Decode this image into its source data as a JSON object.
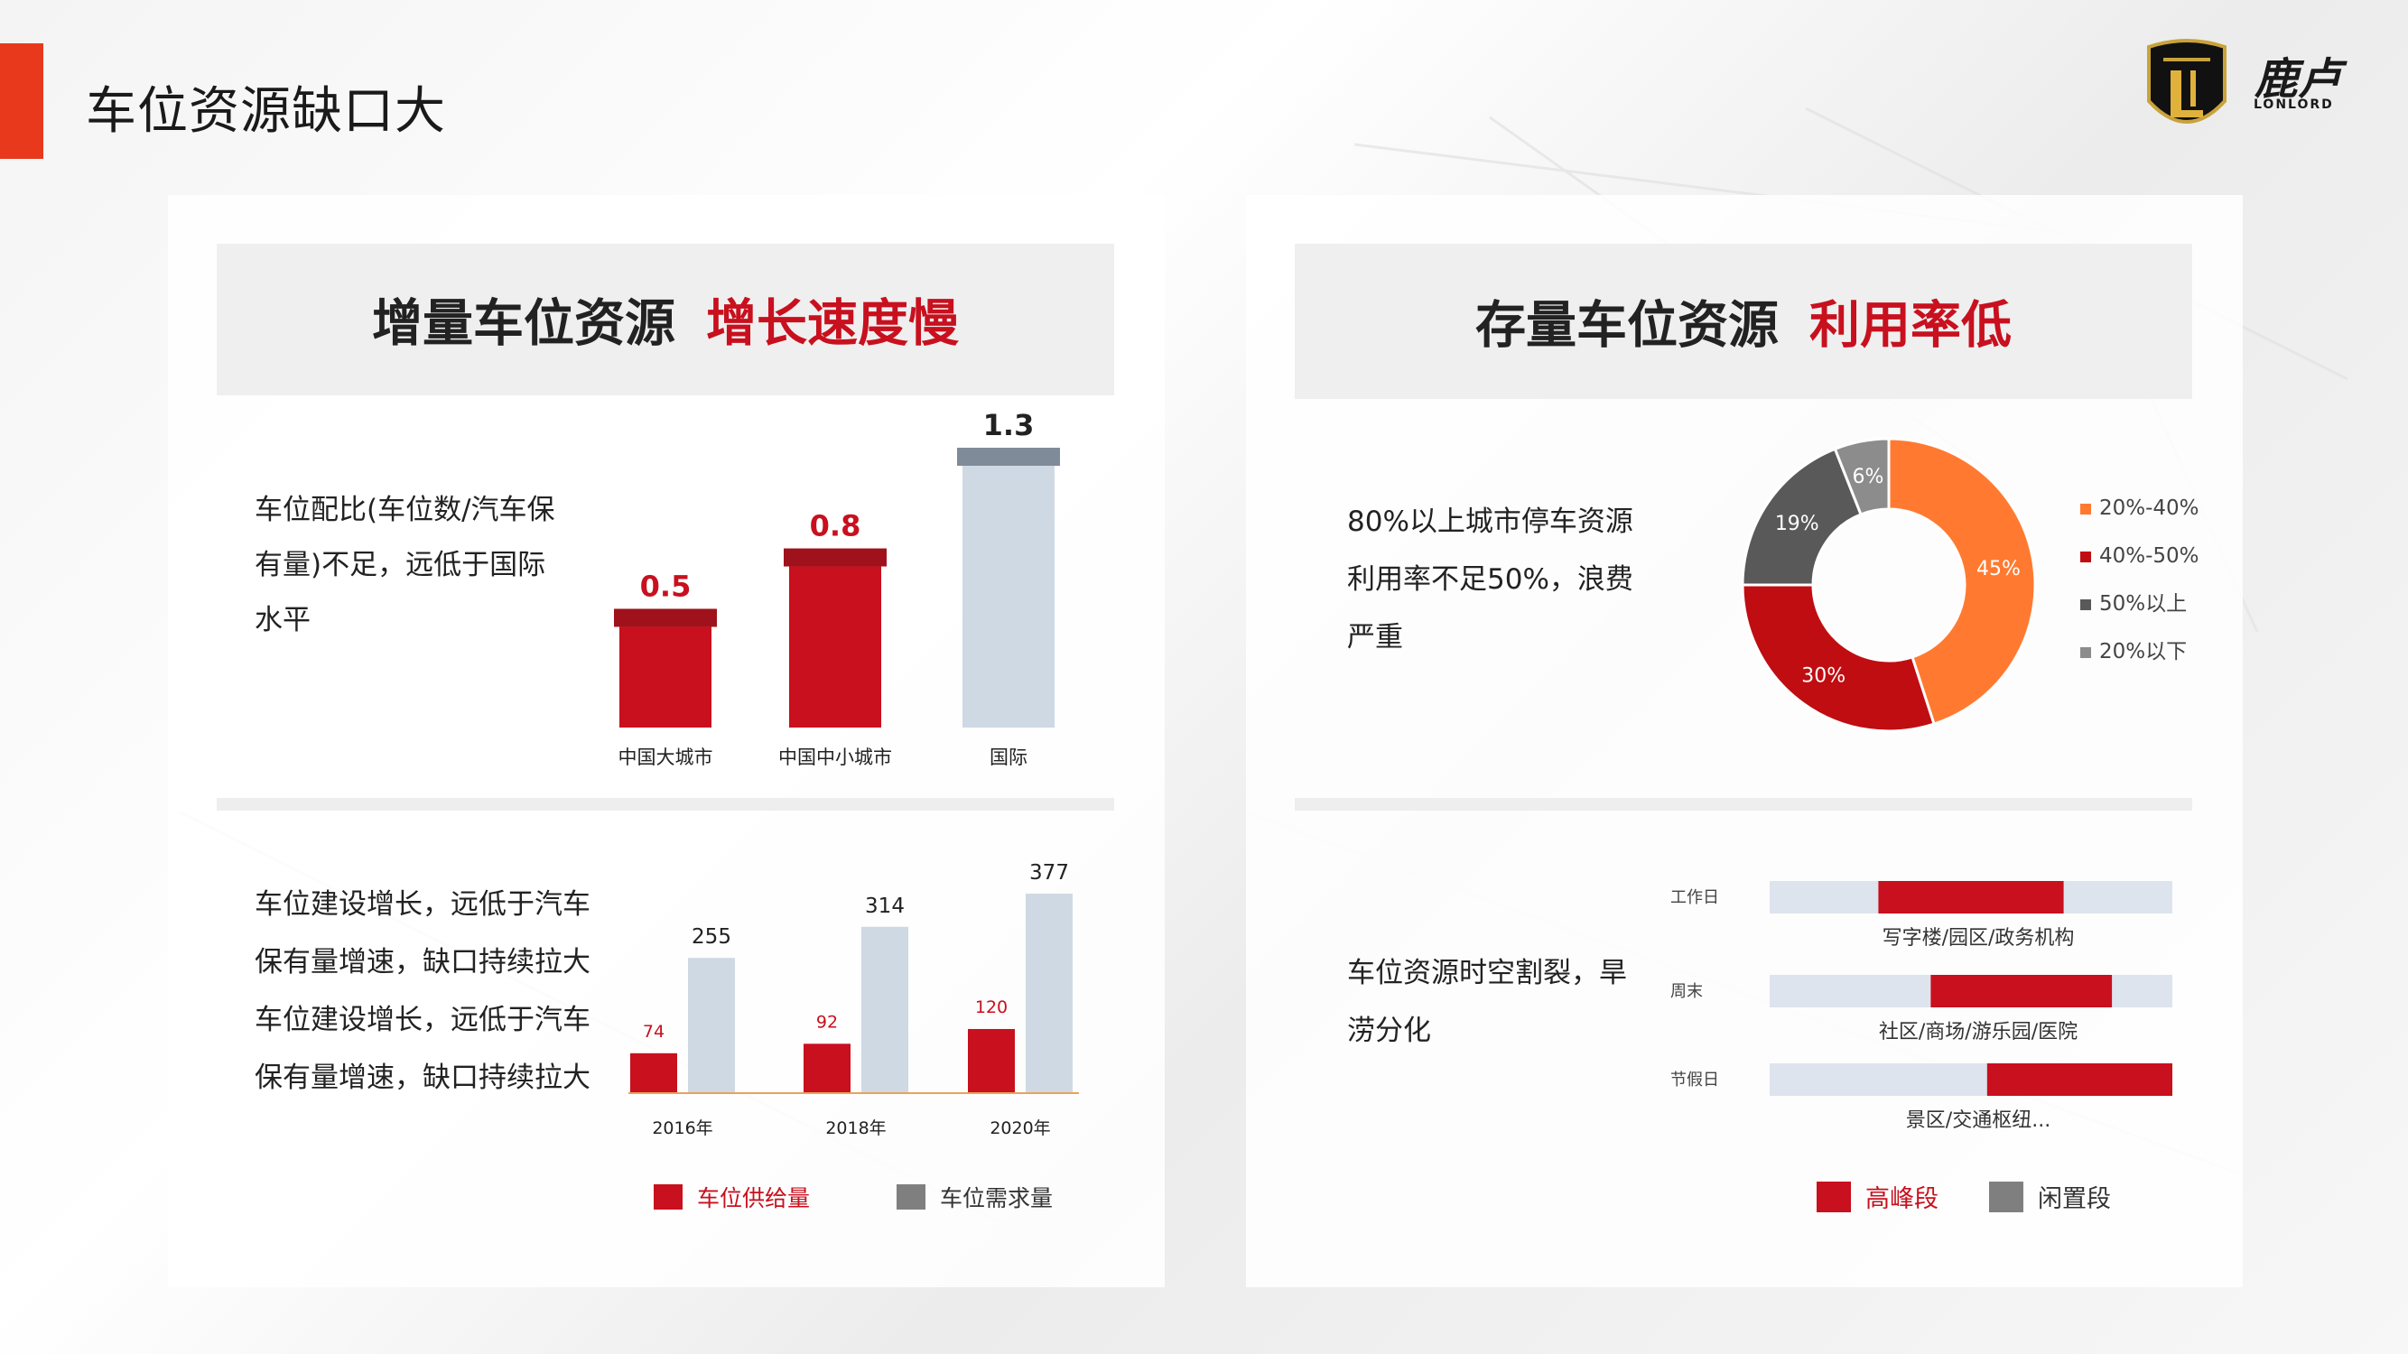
{
  "page": {
    "title": "车位资源缺口大",
    "logo": {
      "cn": "鹿卢",
      "en": "LONLORD",
      "badge": "LONLORD"
    }
  },
  "colors": {
    "red": "#c8101e",
    "dark_red": "#a0121b",
    "light_blue": "#cfd9e4",
    "gray": "#7f7f7f",
    "orange": "#ff7a30",
    "dark_gray": "#5a5a5a",
    "accent": "#e8391d"
  },
  "left_panel": {
    "header_main": "增量车位资源",
    "header_highlight": "增长速度慢",
    "ratio_desc": "车位配比(车位数/汽车保有量)不足，远低于国际水平",
    "growth_desc": "车位建设增长，远低于汽车保有量增速，缺口持续拉大车位建设增长，远低于汽车保有量增速，缺口持续拉大"
  },
  "right_panel": {
    "header_main": "存量车位资源",
    "header_highlight": "利用率低",
    "util_desc": "80%以上城市停车资源利用率不足50%，浪费严重",
    "split_desc": "车位资源时空割裂，旱涝分化"
  },
  "chart_data": [
    {
      "type": "bar",
      "categories": [
        "中国大城市",
        "中国中小城市",
        "国际"
      ],
      "values": [
        0.5,
        0.8,
        1.3
      ],
      "data_labels": [
        "0.5",
        "0.8",
        "1.3"
      ],
      "colors": [
        "#c8101e",
        "#c8101e",
        "#cfd9e4"
      ],
      "cap_colors": [
        "#a0121b",
        "#a0121b",
        "#7f8b99"
      ],
      "title": "",
      "xlabel": "",
      "ylabel": "",
      "ylim": [
        0,
        1.3
      ]
    },
    {
      "type": "bar",
      "categories": [
        "2016年",
        "2018年",
        "2020年"
      ],
      "series": [
        {
          "name": "车位供给量",
          "values": [
            74,
            92,
            120
          ],
          "color": "#c8101e"
        },
        {
          "name": "车位需求量",
          "values": [
            255,
            314,
            377
          ],
          "color": "#cfd9e4",
          "legend_color": "#7f7f7f"
        }
      ],
      "title": "",
      "xlabel": "",
      "ylabel": "",
      "ylim": [
        0,
        377
      ],
      "legend": "bottom"
    },
    {
      "type": "pie",
      "donut": true,
      "slices": [
        {
          "label": "20%-40%",
          "value": 45,
          "text": "45%",
          "color": "#ff7a30"
        },
        {
          "label": "40%-50%",
          "value": 30,
          "text": "30%",
          "color": "#c00d12"
        },
        {
          "label": "50%以上",
          "value": 19,
          "text": "19%",
          "color": "#595959"
        },
        {
          "label": "20%以下",
          "value": 6,
          "text": "6%",
          "color": "#8c8c8c"
        }
      ],
      "legend": "right"
    },
    {
      "type": "bar",
      "orientation": "horizontal-range",
      "rows": [
        {
          "label": "工作日",
          "caption": "写字楼/园区/政务机构",
          "peak_start": 0.27,
          "peak_end": 0.73
        },
        {
          "label": "周末",
          "caption": "社区/商场/游乐园/医院",
          "peak_start": 0.4,
          "peak_end": 0.85
        },
        {
          "label": "节假日",
          "caption": "景区/交通枢纽...",
          "peak_start": 0.54,
          "peak_end": 1.0
        }
      ],
      "legend_items": [
        {
          "name": "高峰段",
          "color": "#c8101e"
        },
        {
          "name": "闲置段",
          "color": "#7f7f7f"
        }
      ],
      "track_color": "#dde4ee",
      "legend": "bottom"
    }
  ]
}
